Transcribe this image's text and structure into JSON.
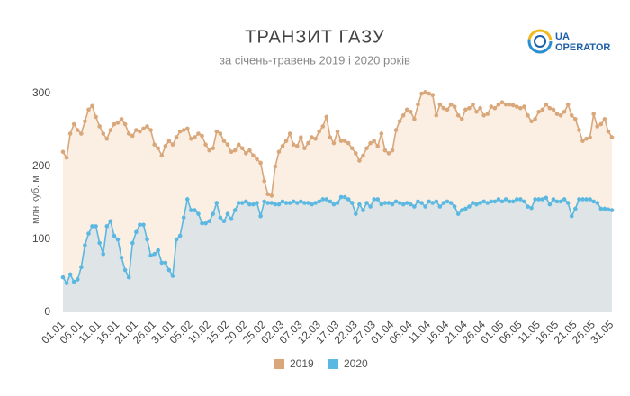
{
  "chart_data": {
    "type": "area-line",
    "title": "ТРАНЗИТ ГАЗУ",
    "subtitle": "за січень-травень 2019 і 2020 років",
    "y_label": "млн куб. м",
    "logo": {
      "short": "UA",
      "name": "OPERATOR"
    },
    "categories": [
      "01.01",
      null,
      null,
      null,
      null,
      "06.01",
      null,
      null,
      null,
      null,
      "11.01",
      null,
      null,
      null,
      null,
      "16.01",
      null,
      null,
      null,
      null,
      "21.01",
      null,
      null,
      null,
      null,
      "26.01",
      null,
      null,
      null,
      null,
      "31.01",
      null,
      null,
      null,
      null,
      "05.02",
      null,
      null,
      null,
      null,
      "10.02",
      null,
      null,
      null,
      null,
      "15.02",
      null,
      null,
      null,
      null,
      "20.02",
      null,
      null,
      null,
      null,
      "25.02",
      null,
      null,
      null,
      null,
      "02.03",
      null,
      null,
      null,
      null,
      "07.03",
      null,
      null,
      null,
      null,
      "12.03",
      null,
      null,
      null,
      null,
      "17.03",
      null,
      null,
      null,
      null,
      "22.03",
      null,
      null,
      null,
      null,
      "27.03",
      null,
      null,
      null,
      null,
      "01.04",
      null,
      null,
      null,
      null,
      "06.04",
      null,
      null,
      null,
      null,
      "11.04",
      null,
      null,
      null,
      null,
      "16.04",
      null,
      null,
      null,
      null,
      "21.04",
      null,
      null,
      null,
      null,
      "26.04",
      null,
      null,
      null,
      null,
      "01.05",
      null,
      null,
      null,
      null,
      "06.05",
      null,
      null,
      null,
      null,
      "11.05",
      null,
      null,
      null,
      null,
      "16.05",
      null,
      null,
      null,
      null,
      "21.05",
      null,
      null,
      null,
      null,
      "26.05",
      null,
      null,
      null,
      null,
      "31.05"
    ],
    "series": [
      {
        "name": "2019",
        "color": "#d9a77a",
        "fill": "#fbefe4",
        "values": [
          220,
          212,
          245,
          258,
          250,
          245,
          262,
          278,
          283,
          268,
          255,
          245,
          238,
          250,
          258,
          260,
          265,
          258,
          245,
          242,
          250,
          248,
          252,
          255,
          250,
          230,
          225,
          215,
          228,
          235,
          230,
          240,
          248,
          250,
          252,
          238,
          240,
          245,
          242,
          230,
          222,
          225,
          248,
          245,
          235,
          230,
          220,
          222,
          230,
          225,
          218,
          222,
          215,
          210,
          205,
          180,
          162,
          160,
          200,
          220,
          228,
          235,
          245,
          230,
          228,
          240,
          225,
          232,
          240,
          238,
          248,
          255,
          268,
          240,
          232,
          248,
          235,
          235,
          232,
          225,
          218,
          208,
          215,
          225,
          232,
          235,
          228,
          245,
          222,
          218,
          222,
          250,
          262,
          270,
          278,
          275,
          265,
          285,
          300,
          302,
          300,
          298,
          270,
          285,
          280,
          278,
          285,
          282,
          270,
          265,
          278,
          280,
          285,
          275,
          280,
          270,
          272,
          282,
          280,
          285,
          288,
          285,
          285,
          284,
          282,
          280,
          282,
          270,
          262,
          265,
          275,
          278,
          285,
          280,
          278,
          272,
          270,
          275,
          285,
          270,
          265,
          250,
          235,
          238,
          240,
          272,
          255,
          258,
          265,
          248,
          240
        ]
      },
      {
        "name": "2020",
        "color": "#5bb8e0",
        "fill": "#dfe4e7",
        "values": [
          48,
          40,
          52,
          42,
          45,
          62,
          92,
          108,
          118,
          118,
          95,
          80,
          118,
          125,
          105,
          100,
          75,
          58,
          48,
          95,
          110,
          120,
          120,
          100,
          78,
          80,
          85,
          68,
          68,
          58,
          50,
          100,
          105,
          130,
          155,
          140,
          140,
          135,
          122,
          122,
          125,
          135,
          150,
          130,
          125,
          135,
          128,
          140,
          150,
          150,
          152,
          148,
          148,
          150,
          132,
          152,
          150,
          150,
          148,
          148,
          152,
          150,
          150,
          152,
          150,
          152,
          150,
          150,
          148,
          150,
          152,
          155,
          155,
          152,
          148,
          150,
          158,
          158,
          155,
          150,
          135,
          148,
          140,
          150,
          145,
          155,
          155,
          148,
          150,
          150,
          148,
          152,
          150,
          148,
          150,
          148,
          145,
          152,
          150,
          145,
          152,
          150,
          152,
          145,
          150,
          152,
          150,
          145,
          135,
          140,
          142,
          145,
          150,
          148,
          150,
          152,
          150,
          152,
          152,
          155,
          152,
          155,
          152,
          152,
          155,
          155,
          152,
          145,
          143,
          155,
          155,
          155,
          157,
          148,
          155,
          152,
          152,
          155,
          150,
          132,
          142,
          155,
          155,
          155,
          155,
          152,
          150,
          142,
          142,
          141,
          140
        ]
      }
    ],
    "ylim": [
      0,
      300
    ],
    "yticks": [
      0,
      100,
      200,
      300
    ],
    "grid": false
  }
}
